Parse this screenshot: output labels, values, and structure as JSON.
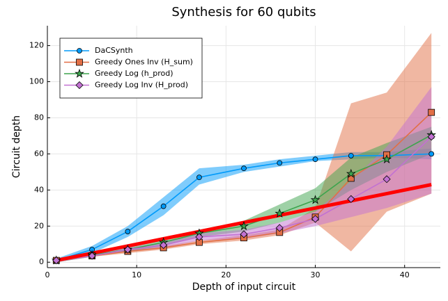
{
  "chart_data": {
    "type": "line",
    "title": "Synthesis for 60 qubits",
    "xlabel": "Depth of input circuit",
    "ylabel": "Circuit depth",
    "x": [
      1,
      5,
      9,
      13,
      17,
      22,
      26,
      30,
      34,
      38,
      43
    ],
    "series": [
      {
        "name": "DaCSynth",
        "color": "#009afa",
        "marker": "circle",
        "values": [
          1,
          7,
          17,
          31,
          47,
          52,
          55,
          57,
          59,
          59,
          60
        ],
        "lower": [
          0,
          5,
          14,
          26,
          43,
          50,
          53,
          56,
          57,
          58,
          57
        ],
        "upper": [
          2,
          9,
          20,
          36,
          52,
          54,
          57,
          59,
          61,
          61,
          63
        ]
      },
      {
        "name": "Greedy Ones Inv (H_sum)",
        "color": "#e26f46",
        "marker": "square",
        "values": [
          1,
          3.5,
          6,
          8,
          11,
          13.5,
          16.5,
          25,
          46.5,
          59.5,
          83
        ],
        "lower": [
          0,
          3,
          5,
          7,
          10,
          12,
          15,
          22,
          6,
          28,
          38
        ],
        "upper": [
          2,
          4,
          7,
          9,
          12,
          15,
          18,
          30,
          88,
          94,
          127
        ]
      },
      {
        "name": "Greedy Log (h_prod)",
        "color": "#3da44d",
        "marker": "star",
        "values": [
          1,
          4,
          7,
          11,
          16,
          20,
          27,
          34.5,
          49,
          57,
          70.5
        ],
        "lower": [
          0,
          3,
          6,
          9,
          14,
          17,
          22,
          28,
          40,
          50,
          60
        ],
        "upper": [
          2,
          5,
          8,
          13,
          18,
          23,
          32,
          41,
          58,
          66,
          75
        ]
      },
      {
        "name": "Greedy Log Inv (H_prod)",
        "color": "#c271d2",
        "marker": "diamond",
        "values": [
          1,
          3.5,
          7,
          9.5,
          14,
          15.5,
          19,
          24,
          35,
          46,
          69.5
        ],
        "lower": [
          0,
          3,
          6,
          8,
          12,
          13,
          16,
          20,
          25,
          30,
          38
        ],
        "upper": [
          2,
          4,
          8,
          11,
          16,
          18,
          22,
          28,
          45,
          64,
          97
        ]
      }
    ],
    "trend": {
      "x": [
        1,
        43
      ],
      "values": [
        1,
        43
      ],
      "color": "#ff0000"
    },
    "xlim": [
      0,
      44
    ],
    "ylim": [
      -3,
      131
    ],
    "xticks": [
      0,
      10,
      20,
      30,
      40
    ],
    "yticks": [
      0,
      20,
      40,
      60,
      80,
      100,
      120
    ],
    "grid": true,
    "legend": "top-left"
  }
}
